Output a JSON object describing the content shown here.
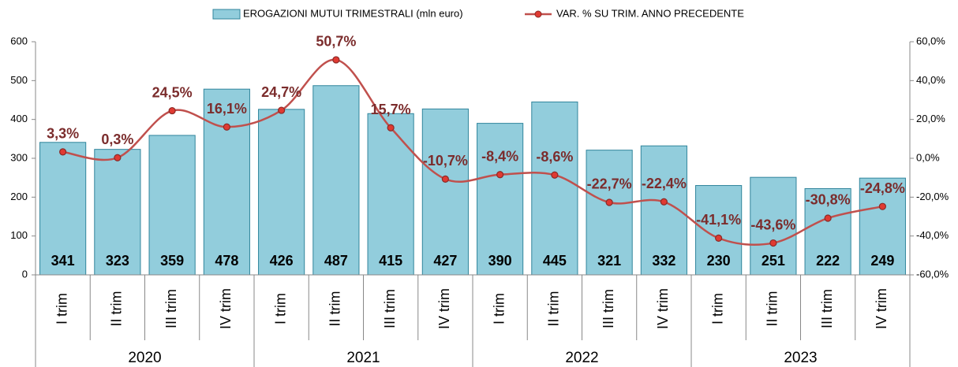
{
  "chart_data": {
    "type": "bar-line",
    "categories": [
      "I trim",
      "II trim",
      "III trim",
      "IV trim",
      "I trim",
      "II trim",
      "III trim",
      "IV trim",
      "I trim",
      "II trim",
      "III trim",
      "IV trim",
      "I trim",
      "II trim",
      "III trim",
      "IV trim"
    ],
    "group_labels": [
      "2020",
      "2021",
      "2022",
      "2023"
    ],
    "series": [
      {
        "name": "EROGAZIONI MUTUI TRIMESTRALI (mln euro)",
        "type": "bar",
        "color": "#92cddc",
        "edge_color": "#31859c",
        "values": [
          341,
          323,
          359,
          478,
          426,
          487,
          415,
          427,
          390,
          445,
          321,
          332,
          230,
          251,
          222,
          249
        ]
      },
      {
        "name": "VAR. % SU TRIM. ANNO PRECEDENTE",
        "type": "line",
        "axis": "y2",
        "color": "#c0504d",
        "label_color": "#7b2c2c",
        "values": [
          3.3,
          0.3,
          24.5,
          16.1,
          24.7,
          50.7,
          15.7,
          -10.7,
          -8.4,
          -8.6,
          -22.7,
          -22.4,
          -41.1,
          -43.6,
          -30.8,
          -24.8
        ],
        "value_labels": [
          "3,3%",
          "0,3%",
          "24,5%",
          "16,1%",
          "24,7%",
          "50,7%",
          "15,7%",
          "-10,7%",
          "-8,4%",
          "-8,6%",
          "-22,7%",
          "-22,4%",
          "-41,1%",
          "-43,6%",
          "-30,8%",
          "-24,8%"
        ]
      }
    ],
    "ylim": [
      0,
      600
    ],
    "yticks": [
      0,
      100,
      200,
      300,
      400,
      500,
      600
    ],
    "y2lim": [
      -60,
      60
    ],
    "y2ticks": [
      {
        "value": -60,
        "label": "-60,0%"
      },
      {
        "value": -40,
        "label": "-40,0%"
      },
      {
        "value": -20,
        "label": "-20,0%"
      },
      {
        "value": 0,
        "label": "0,0%"
      },
      {
        "value": 20,
        "label": "20,0%"
      },
      {
        "value": 40,
        "label": "40,0%"
      },
      {
        "value": 60,
        "label": "60,0%"
      }
    ],
    "legend": "top"
  }
}
